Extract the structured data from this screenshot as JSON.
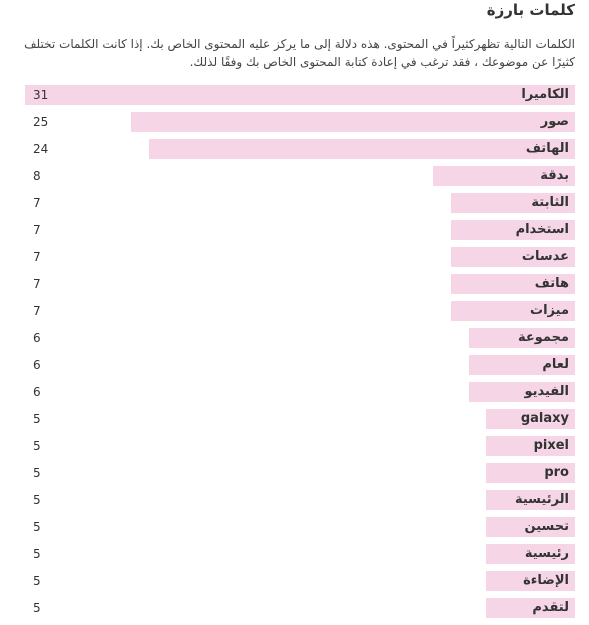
{
  "panel": {
    "title": "كلمات بارزة",
    "description": "الكلمات التالية تظهركثيراً في المحتوى. هذه دلالة إلى ما يركز عليه المحتوى الخاص بك. إذا كانت الكلمات تختلف كثيرًا عن موضوعك ، فقد ترغب في إعادة كتابة المحتوى الخاص بك وفقًا لذلك."
  },
  "colors": {
    "bar": "#f5d5e6"
  },
  "chart_data": {
    "type": "bar",
    "categories": [
      "الكاميرا",
      "صور",
      "الهاتف",
      "بدقة",
      "الثابتة",
      "استخدام",
      "عدسات",
      "هاتف",
      "ميزات",
      "مجموعة",
      "لعام",
      "الفيديو",
      "galaxy",
      "pixel",
      "pro",
      "الرئيسية",
      "تحسين",
      "رئيسية",
      "الإضاءة",
      "لتقدم"
    ],
    "values": [
      31,
      25,
      24,
      8,
      7,
      7,
      7,
      7,
      7,
      6,
      6,
      6,
      5,
      5,
      5,
      5,
      5,
      5,
      5,
      5
    ],
    "xlim": [
      0,
      31
    ]
  }
}
